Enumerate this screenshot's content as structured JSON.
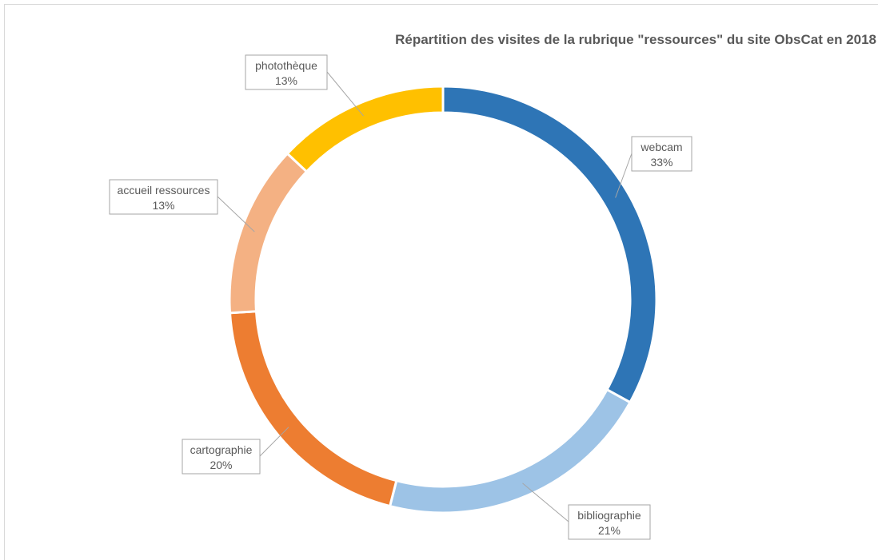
{
  "chart_data": {
    "type": "pie",
    "style": "doughnut",
    "title": "Répartition des visites de la rubrique \"ressources\" du site ObsCat en 2018",
    "slices": [
      {
        "label": "webcam",
        "value": 33,
        "value_label": "33%",
        "color": "#2E75B6"
      },
      {
        "label": "bibliographie",
        "value": 21,
        "value_label": "21%",
        "color": "#9DC3E6"
      },
      {
        "label": "cartographie",
        "value": 20,
        "value_label": "20%",
        "color": "#ED7D31"
      },
      {
        "label": "accueil ressources",
        "value": 13,
        "value_label": "13%",
        "color": "#F4B183"
      },
      {
        "label": "photothèque",
        "value": 13,
        "value_label": "13%",
        "color": "#FFC000"
      }
    ],
    "start_angle": "12 o'clock",
    "direction": "clockwise",
    "legend": "none"
  }
}
